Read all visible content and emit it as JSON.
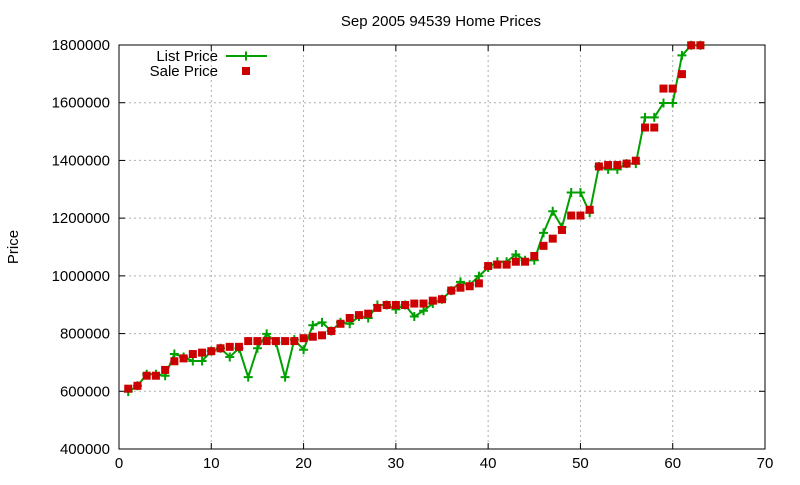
{
  "chart_data": {
    "type": "line",
    "title": "Sep 2005 94539 Home Prices",
    "xlabel": "",
    "ylabel": "Price",
    "xlim": [
      0,
      70
    ],
    "ylim": [
      400000,
      1800000
    ],
    "xticks": [
      0,
      10,
      20,
      30,
      40,
      50,
      60,
      70
    ],
    "yticks": [
      400000,
      600000,
      800000,
      1000000,
      1200000,
      1400000,
      1600000,
      1800000
    ],
    "grid": true,
    "legend_position": "top-left",
    "series": [
      {
        "name": "List Price",
        "style": "line-plus",
        "color": "#00a000",
        "x": [
          1,
          2,
          3,
          4,
          5,
          6,
          7,
          8,
          9,
          10,
          11,
          12,
          13,
          14,
          15,
          16,
          17,
          18,
          19,
          20,
          21,
          22,
          23,
          24,
          25,
          26,
          27,
          28,
          29,
          30,
          31,
          32,
          33,
          34,
          35,
          36,
          37,
          38,
          39,
          40,
          41,
          42,
          43,
          44,
          45,
          46,
          47,
          48,
          49,
          50,
          51,
          52,
          53,
          54,
          55,
          56,
          57,
          58,
          59,
          60,
          61,
          62,
          63
        ],
        "values": [
          599000,
          619000,
          659000,
          659000,
          654000,
          729000,
          719000,
          705000,
          705000,
          739000,
          749000,
          719000,
          749000,
          649000,
          749000,
          799000,
          769000,
          649000,
          779000,
          744000,
          829000,
          839000,
          809000,
          839000,
          834000,
          859000,
          854000,
          899000,
          899000,
          884000,
          899000,
          859000,
          879000,
          904000,
          919000,
          949000,
          979000,
          969000,
          999000,
          1029000,
          1049000,
          1049000,
          1074000,
          1054000,
          1054000,
          1149000,
          1224000,
          1169000,
          1289000,
          1289000,
          1219000,
          1379000,
          1369000,
          1369000,
          1389000,
          1389000,
          1549000,
          1549000,
          1599000,
          1599000,
          1764000,
          1799000,
          1799000
        ]
      },
      {
        "name": "Sale Price",
        "style": "square",
        "color": "#cc0000",
        "x": [
          1,
          2,
          3,
          4,
          5,
          6,
          7,
          8,
          9,
          10,
          11,
          12,
          13,
          14,
          15,
          16,
          17,
          18,
          19,
          20,
          21,
          22,
          23,
          24,
          25,
          26,
          27,
          28,
          29,
          30,
          31,
          32,
          33,
          34,
          35,
          36,
          37,
          38,
          39,
          40,
          41,
          42,
          43,
          44,
          45,
          46,
          47,
          48,
          49,
          50,
          51,
          52,
          53,
          54,
          55,
          56,
          57,
          58,
          59,
          60,
          61,
          62,
          63
        ],
        "values": [
          609000,
          619000,
          654000,
          654000,
          674000,
          704000,
          714000,
          729000,
          734000,
          739000,
          749000,
          754000,
          754000,
          774000,
          774000,
          774000,
          774000,
          774000,
          774000,
          784000,
          789000,
          794000,
          809000,
          834000,
          854000,
          864000,
          869000,
          889000,
          899000,
          899000,
          899000,
          904000,
          904000,
          914000,
          919000,
          949000,
          959000,
          964000,
          974000,
          1034000,
          1039000,
          1039000,
          1049000,
          1049000,
          1069000,
          1104000,
          1129000,
          1159000,
          1209000,
          1209000,
          1229000,
          1379000,
          1384000,
          1384000,
          1389000,
          1399000,
          1514000,
          1514000,
          1649000,
          1649000,
          1699000,
          1799000,
          1799000
        ]
      }
    ]
  }
}
